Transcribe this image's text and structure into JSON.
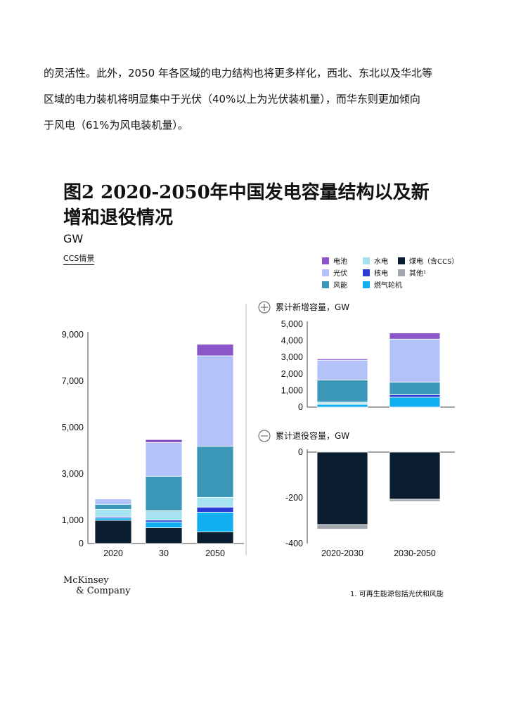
{
  "paragraph": {
    "line1": "的灵活性。此外，2050 年各区域的电力结构也将更多样化，西北、东北以及华北等",
    "line2": "区域的电力装机将明显集中于光伏（40%以上为光伏装机量），而华东则更加倾向",
    "line3": "于风电（61%为风电装机量）。"
  },
  "figure": {
    "title_line1": "图2 2020-2050年中国发电容量结构以及新",
    "title_line2": "增和退役情况",
    "unit": "GW",
    "scenario": "CCS情景",
    "footnote": "1. 可再生能源包括光伏和风能"
  },
  "logo": {
    "line1": "McKinsey",
    "line2": "& Company"
  },
  "colors": {
    "battery": "#8b57c8",
    "solar": "#b3c3fa",
    "wind": "#3b97b8",
    "hydro": "#a6e2ef",
    "nuclear": "#2a3bd6",
    "gas_turbine": "#12aff0",
    "coal": "#0b1e31",
    "other": "#a3a8ae"
  },
  "legend": [
    {
      "key": "battery",
      "label": "电池"
    },
    {
      "key": "hydro",
      "label": "水电"
    },
    {
      "key": "coal",
      "label": "煤电（含CCS）"
    },
    {
      "key": "solar",
      "label": "光伏"
    },
    {
      "key": "nuclear",
      "label": "核电"
    },
    {
      "key": "other",
      "label": "其他¹"
    },
    {
      "key": "wind",
      "label": "风能"
    },
    {
      "key": "gas_turbine",
      "label": "燃气轮机"
    }
  ],
  "chart_data": [
    {
      "type": "bar",
      "stacked": true,
      "title": "",
      "ylabel": "GW",
      "categories": [
        "2020",
        "30",
        "2050"
      ],
      "ylim": [
        0,
        9000
      ],
      "yticks": [
        0,
        1000,
        3000,
        5000,
        7000,
        9000
      ],
      "series": [
        {
          "key": "coal",
          "name": "煤电（含CCS）",
          "values": [
            1000,
            680,
            500
          ]
        },
        {
          "key": "gas_turbine",
          "name": "燃气轮机",
          "values": [
            100,
            250,
            850
          ]
        },
        {
          "key": "nuclear",
          "name": "核电",
          "values": [
            50,
            80,
            220
          ]
        },
        {
          "key": "hydro",
          "name": "水电",
          "values": [
            320,
            410,
            420
          ]
        },
        {
          "key": "wind",
          "name": "风能",
          "values": [
            220,
            1480,
            2200
          ]
        },
        {
          "key": "solar",
          "name": "光伏",
          "values": [
            230,
            1450,
            3900
          ]
        },
        {
          "key": "battery",
          "name": "电池",
          "values": [
            0,
            130,
            500
          ]
        }
      ],
      "grid": false
    },
    {
      "type": "bar",
      "stacked": true,
      "title": "累计新增容量，GW",
      "categories": [
        "2020-2030",
        "2030-2050"
      ],
      "ylim": [
        0,
        5000
      ],
      "yticks": [
        0,
        1000,
        2000,
        3000,
        4000,
        5000
      ],
      "series": [
        {
          "key": "gas_turbine",
          "name": "燃气轮机",
          "values": [
            170,
            600
          ]
        },
        {
          "key": "nuclear",
          "name": "核电",
          "values": [
            30,
            140
          ]
        },
        {
          "key": "hydro",
          "name": "水电",
          "values": [
            100,
            10
          ]
        },
        {
          "key": "wind",
          "name": "风能",
          "values": [
            1330,
            750
          ]
        },
        {
          "key": "solar",
          "name": "光伏",
          "values": [
            1200,
            2600
          ]
        },
        {
          "key": "battery",
          "name": "电池",
          "values": [
            80,
            370
          ]
        }
      ],
      "grid": false
    },
    {
      "type": "bar",
      "stacked": true,
      "title": "累计退役容量，GW",
      "categories": [
        "2020-2030",
        "2030-2050"
      ],
      "ylim": [
        -400,
        0
      ],
      "yticks": [
        0,
        -200,
        -400
      ],
      "series": [
        {
          "key": "coal",
          "name": "煤电（含CCS）",
          "values": [
            -317,
            -206
          ]
        },
        {
          "key": "other",
          "name": "其他¹",
          "values": [
            -20,
            -10
          ]
        }
      ],
      "grid": false
    }
  ]
}
